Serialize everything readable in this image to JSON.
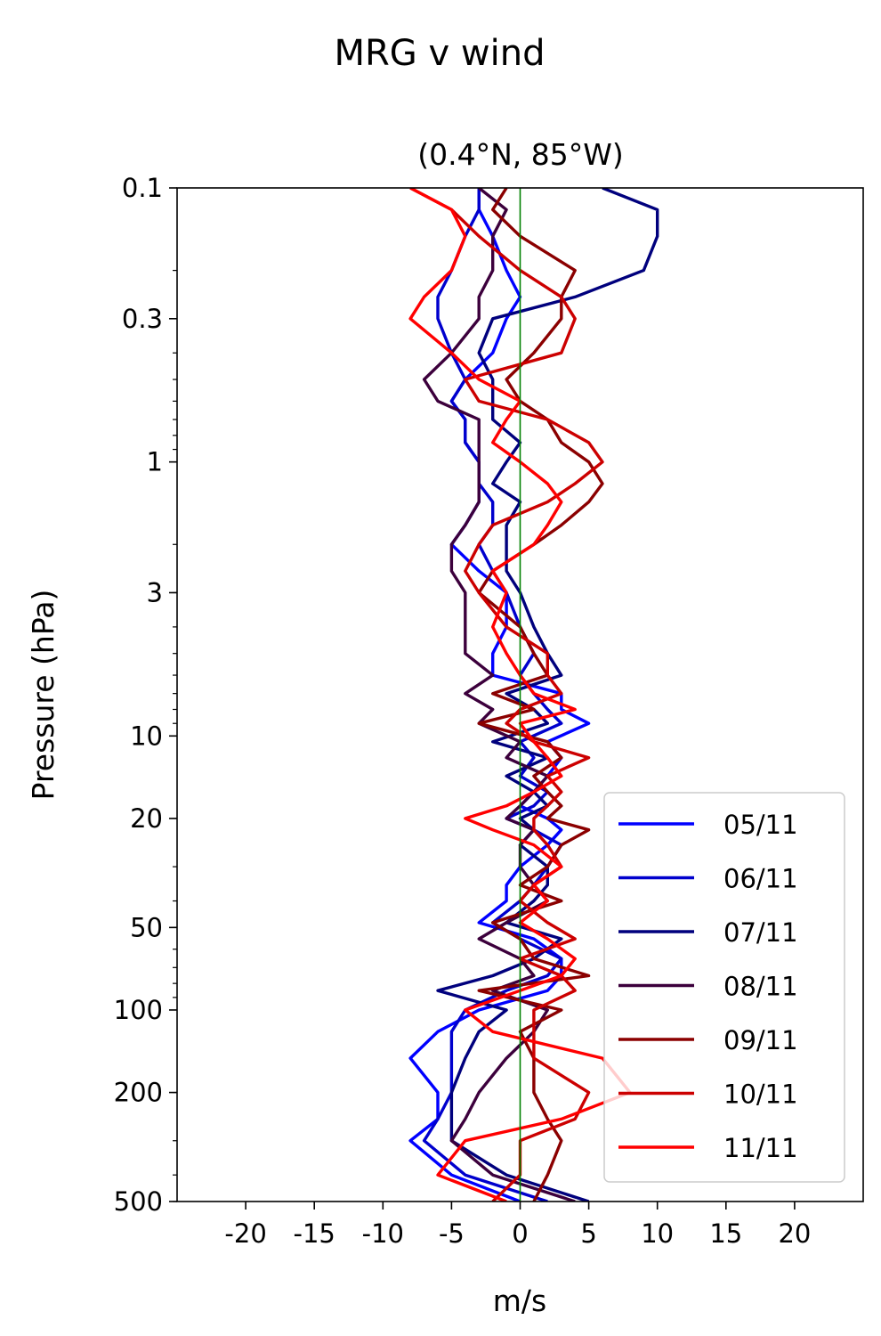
{
  "chart_data": {
    "type": "line",
    "suptitle": "MRG v wind",
    "title": "(0.4°N, 85°W)",
    "xlabel": "m/s",
    "ylabel": "Pressure (hPa)",
    "xlim": [
      -25,
      25
    ],
    "ylim": [
      500,
      0.1
    ],
    "yscale": "log",
    "xticks": [
      -20,
      -15,
      -10,
      -5,
      0,
      5,
      10,
      15,
      20
    ],
    "xtick_labels": [
      "-20",
      "-15",
      "-10",
      "-5",
      "0",
      "5",
      "10",
      "15",
      "20"
    ],
    "yticks": [
      0.1,
      0.3,
      1,
      3,
      10,
      20,
      50,
      100,
      200,
      500
    ],
    "ytick_labels": [
      "0.1",
      "0.3",
      "1",
      "3",
      "10",
      "20",
      "50",
      "100",
      "200",
      "500"
    ],
    "zero_line_color": "#008000",
    "legend_position": "lower-right",
    "pressure_levels": [
      500,
      400,
      300,
      250,
      200,
      150,
      120,
      100,
      85,
      75,
      65,
      55,
      48,
      40,
      35,
      30,
      25,
      22,
      20,
      18,
      16,
      14,
      12,
      10.5,
      9,
      8,
      7,
      6,
      5,
      4,
      3,
      2.5,
      2,
      1.7,
      1.4,
      1.2,
      1,
      0.85,
      0.7,
      0.6,
      0.5,
      0.4,
      0.3,
      0.25,
      0.2,
      0.15,
      0.12,
      0.1
    ],
    "series": [
      {
        "name": "05/11",
        "color": "#0000ff",
        "values": [
          0,
          -5,
          -8,
          -6,
          -6,
          -8,
          -6,
          -3,
          2,
          3,
          3,
          1,
          -3,
          -1,
          -1,
          0,
          2,
          3,
          2,
          0,
          1,
          2,
          3,
          2,
          5,
          3,
          3,
          -2,
          -2,
          -1,
          -1,
          -3,
          -5,
          -4,
          -3,
          -3,
          -3,
          -4,
          -4,
          -5,
          -4,
          -2,
          -1,
          0,
          -1,
          -2,
          -3,
          -3
        ]
      },
      {
        "name": "06/11",
        "color": "#0000cd",
        "values": [
          2,
          -4,
          -7,
          -6,
          -5,
          -5,
          -5,
          -4,
          -1,
          2,
          3,
          0,
          -2,
          0,
          1,
          2,
          3,
          1,
          -1,
          1,
          2,
          0,
          1,
          0,
          3,
          2,
          1,
          0,
          1,
          0,
          -1,
          -2,
          -3,
          -2,
          -2,
          -3,
          -3,
          -4,
          -4,
          -5,
          -4,
          -5,
          -6,
          -6,
          -5,
          -4,
          -3,
          -3
        ]
      },
      {
        "name": "07/11",
        "color": "#00007d",
        "values": [
          5,
          -1,
          -5,
          -5,
          -5,
          -4,
          -3,
          -1,
          -6,
          -2,
          1,
          3,
          -1,
          1,
          2,
          2,
          0,
          1,
          0,
          2,
          1,
          -1,
          2,
          -2,
          2,
          1,
          -1,
          3,
          2,
          1,
          0,
          -1,
          -1,
          -1,
          0,
          -2,
          -1,
          0,
          -2,
          -2,
          -2,
          -3,
          -2,
          4,
          9,
          10,
          10,
          6
        ]
      },
      {
        "name": "08/11",
        "color": "#3c003c",
        "values": [
          4,
          -2,
          -5,
          -4,
          -3,
          -1,
          1,
          2,
          -2,
          1,
          0,
          -3,
          -1,
          2,
          1,
          0,
          0,
          1,
          -1,
          0,
          1,
          2,
          -1,
          0,
          -3,
          -2,
          -4,
          -2,
          -4,
          -4,
          -4,
          -5,
          -5,
          -4,
          -3,
          -3,
          -3,
          -3,
          -3,
          -6,
          -7,
          -5,
          -3,
          -3,
          -2,
          -2,
          -1,
          -3
        ]
      },
      {
        "name": "09/11",
        "color": "#8b0000",
        "values": [
          1,
          2,
          3,
          2,
          1,
          1,
          0,
          3,
          -3,
          5,
          1,
          0,
          -2,
          3,
          0,
          2,
          3,
          5,
          2,
          3,
          2,
          1,
          3,
          2,
          -3,
          1,
          -2,
          2,
          1,
          0,
          -3,
          -2,
          1,
          3,
          5,
          6,
          5,
          3,
          2,
          0,
          -1,
          1,
          3,
          3,
          4,
          0,
          -2,
          -1
        ]
      },
      {
        "name": "10/11",
        "color": "#cc0000",
        "values": [
          -2,
          0,
          0,
          4,
          5,
          1,
          1,
          1,
          4,
          3,
          0,
          4,
          2,
          0,
          1,
          3,
          2,
          1,
          1,
          2,
          3,
          2,
          5,
          1,
          -1,
          0,
          3,
          2,
          2,
          -1,
          -3,
          -4,
          -3,
          -2,
          2,
          4,
          6,
          5,
          2,
          -3,
          -4,
          3,
          4,
          3,
          0,
          -3,
          -5,
          -8
        ]
      },
      {
        "name": "11/11",
        "color": "#ff0000",
        "values": [
          -1,
          -6,
          -4,
          3,
          8,
          6,
          -2,
          -4,
          0,
          3,
          4,
          2,
          0,
          2,
          1,
          3,
          1,
          -2,
          -4,
          -1,
          1,
          3,
          2,
          1,
          0,
          4,
          1,
          0,
          -1,
          -2,
          -1,
          -2,
          1,
          2,
          3,
          2,
          0,
          -2,
          -1,
          0,
          -3,
          -5,
          -8,
          -7,
          -5,
          -4,
          -5,
          -8
        ]
      }
    ]
  }
}
